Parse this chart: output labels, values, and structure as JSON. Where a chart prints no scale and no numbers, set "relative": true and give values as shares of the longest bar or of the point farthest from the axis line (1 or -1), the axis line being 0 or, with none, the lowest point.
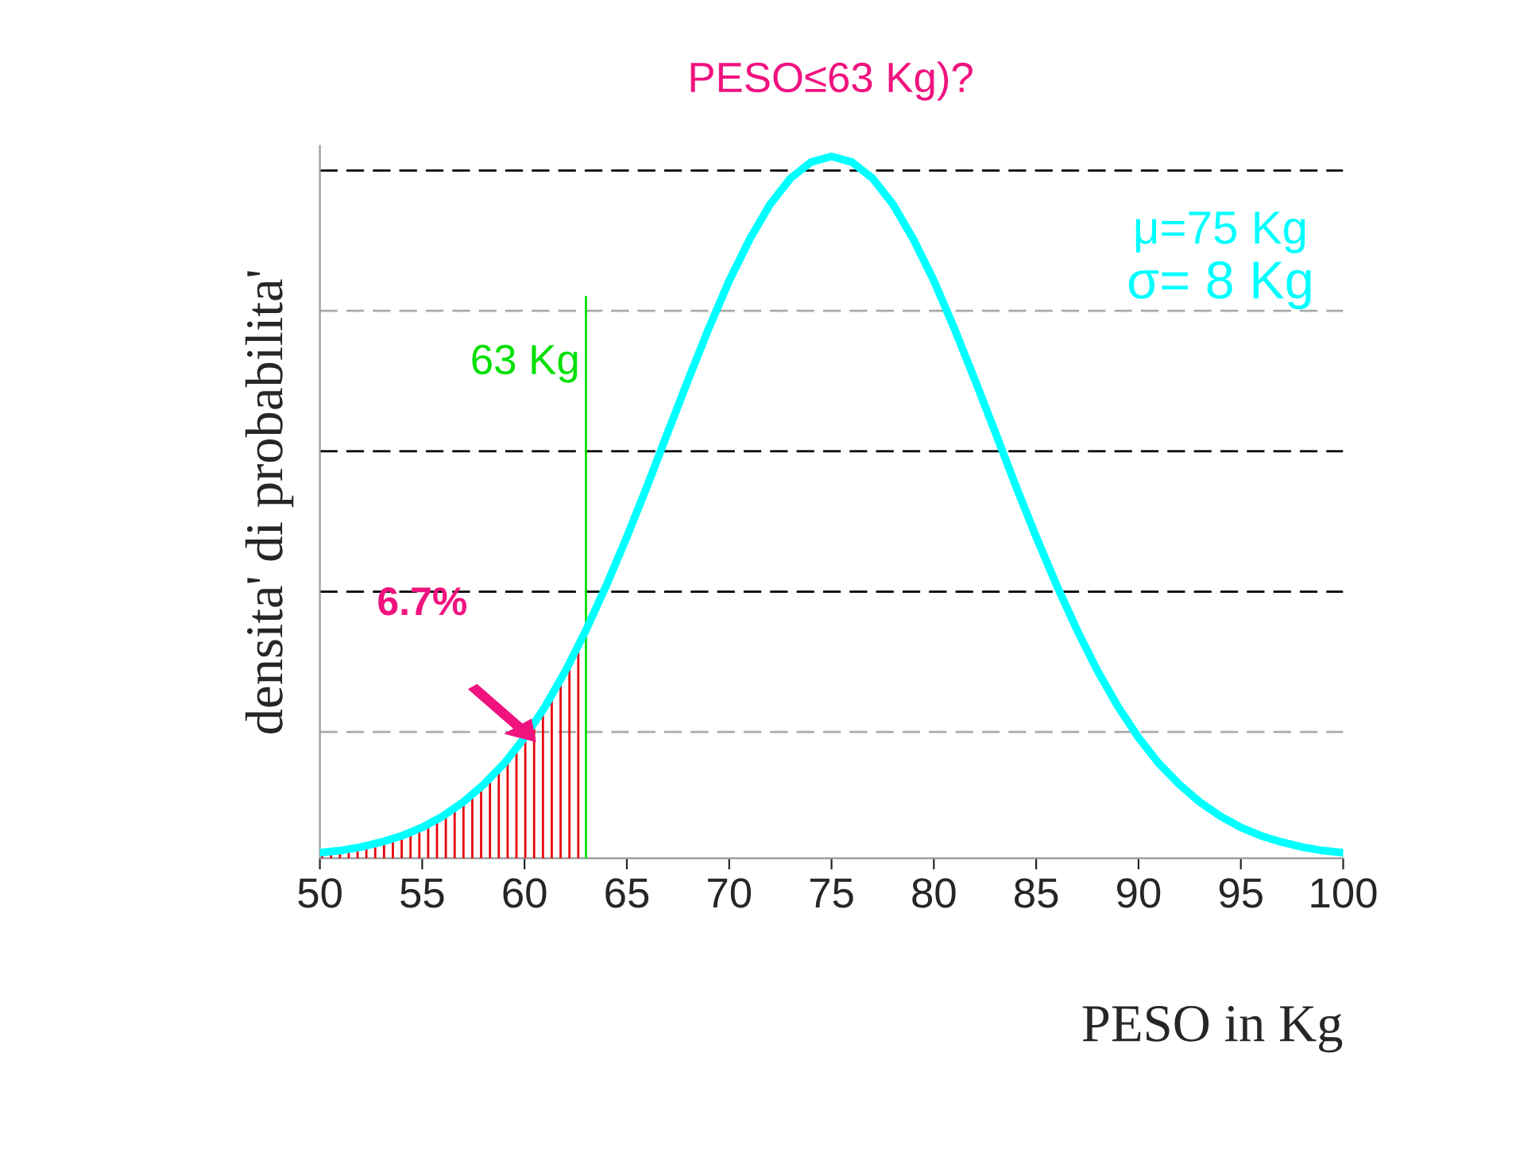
{
  "chart_data": {
    "type": "line",
    "relative": true,
    "title": "PESO≤63 Kg)?",
    "xlabel": "PESO in Kg",
    "ylabel": "densita' di probabilita'",
    "xlim": [
      50,
      100
    ],
    "xticks": [
      50,
      55,
      60,
      65,
      70,
      75,
      80,
      85,
      90,
      95,
      100
    ],
    "grid": false,
    "legend": false,
    "series": [
      {
        "color": "#00ffff",
        "x": [
          50,
          51,
          52,
          53,
          54,
          55,
          56,
          57,
          58,
          59,
          60,
          61,
          62,
          63,
          64,
          65,
          66,
          67,
          68,
          69,
          70,
          71,
          72,
          73,
          74,
          75,
          76,
          77,
          78,
          79,
          80,
          81,
          82,
          83,
          84,
          85,
          86,
          87,
          88,
          89,
          90,
          91,
          92,
          93,
          94,
          95,
          96,
          97,
          98,
          99,
          100
        ],
        "values": [
          0.008,
          0.011,
          0.016,
          0.023,
          0.032,
          0.044,
          0.06,
          0.08,
          0.105,
          0.135,
          0.172,
          0.216,
          0.267,
          0.325,
          0.389,
          0.458,
          0.531,
          0.607,
          0.682,
          0.755,
          0.823,
          0.882,
          0.932,
          0.969,
          0.992,
          1,
          0.992,
          0.969,
          0.932,
          0.882,
          0.823,
          0.755,
          0.682,
          0.607,
          0.531,
          0.458,
          0.389,
          0.325,
          0.267,
          0.216,
          0.172,
          0.135,
          0.105,
          0.08,
          0.06,
          0.044,
          0.032,
          0.023,
          0.016,
          0.011,
          0.008
        ]
      },
      {
        "type": "area",
        "color": "#e8000b",
        "x": [
          50,
          51,
          52,
          53,
          54,
          55,
          56,
          57,
          58,
          59,
          60,
          61,
          62,
          63
        ],
        "values": [
          0.008,
          0.011,
          0.016,
          0.023,
          0.032,
          0.044,
          0.06,
          0.08,
          0.105,
          0.135,
          0.172,
          0.216,
          0.267,
          0.325
        ]
      }
    ],
    "ref_lines": [
      {
        "axis": "y",
        "value": 0.98,
        "color": "#000000",
        "line_style": "dashed"
      },
      {
        "axis": "y",
        "value": 0.78,
        "color": "#aaaaaa",
        "line_style": "dashed"
      },
      {
        "axis": "y",
        "value": 0.58,
        "color": "#000000",
        "line_style": "dashed"
      },
      {
        "axis": "y",
        "value": 0.38,
        "color": "#000000",
        "line_style": "dashed"
      },
      {
        "axis": "y",
        "value": 0.18,
        "color": "#aaaaaa",
        "line_style": "dashed"
      },
      {
        "axis": "x",
        "value": 63,
        "label": "63 Kg",
        "color": "#00e000",
        "line_style": "solid"
      }
    ],
    "annotations": [
      "μ=75 Kg",
      "σ= 8 Kg",
      "6.7%"
    ]
  }
}
